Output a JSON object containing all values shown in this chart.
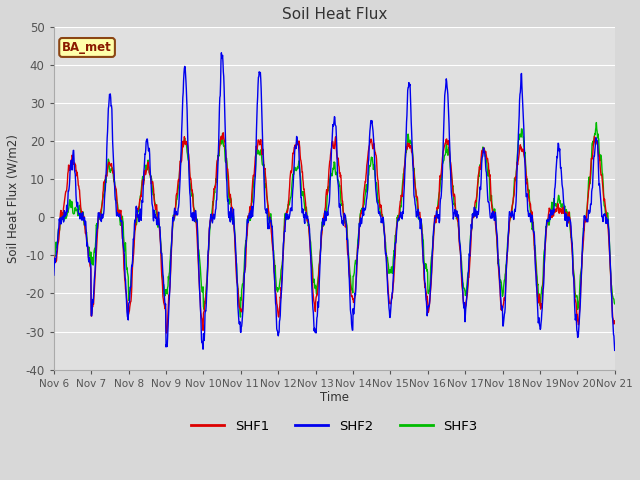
{
  "title": "Soil Heat Flux",
  "ylabel": "Soil Heat Flux (W/m2)",
  "xlabel": "Time",
  "ylim": [
    -40,
    50
  ],
  "xlim_days": [
    0,
    15
  ],
  "fig_bg_color": "#d8d8d8",
  "plot_bg_color": "#e0e0e0",
  "colors": {
    "SHF1": "#dd0000",
    "SHF2": "#0000ee",
    "SHF3": "#00bb00"
  },
  "legend_label": "BA_met",
  "x_tick_labels": [
    "Nov 6",
    "Nov 7",
    "Nov 8",
    "Nov 9",
    "Nov 10",
    "Nov 11",
    "Nov 12",
    "Nov 13",
    "Nov 14",
    "Nov 15",
    "Nov 16",
    "Nov 17",
    "Nov 18",
    "Nov 19",
    "Nov 20",
    "Nov 21"
  ],
  "yticks": [
    -40,
    -30,
    -20,
    -10,
    0,
    10,
    20,
    30,
    40,
    50
  ],
  "grid_color": "#ffffff",
  "line_width": 1.0,
  "figsize": [
    6.4,
    4.8
  ],
  "dpi": 100
}
